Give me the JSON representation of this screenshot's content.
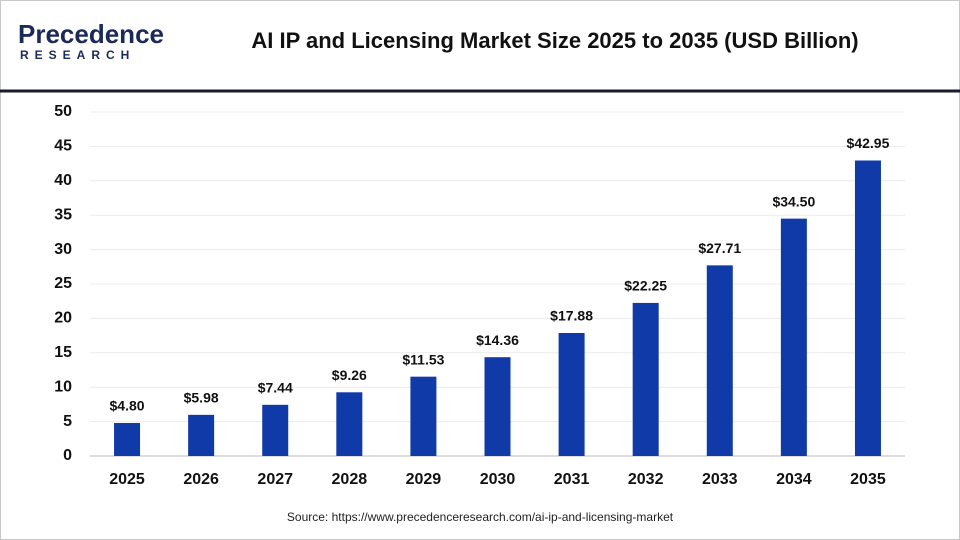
{
  "logo": {
    "name": "Precedence",
    "sub": "RESEARCH"
  },
  "chart_data": {
    "type": "bar",
    "title": "AI IP and Licensing Market Size 2025 to 2035 (USD Billion)",
    "categories": [
      "2025",
      "2026",
      "2027",
      "2028",
      "2029",
      "2030",
      "2031",
      "2032",
      "2033",
      "2034",
      "2035"
    ],
    "values": [
      4.8,
      5.98,
      7.44,
      9.26,
      11.53,
      14.36,
      17.88,
      22.25,
      27.71,
      34.5,
      42.95
    ],
    "value_labels": [
      "$4.80",
      "$5.98",
      "$7.44",
      "$9.26",
      "$11.53",
      "$14.36",
      "$17.88",
      "$22.25",
      "$27.71",
      "$34.50",
      "$42.95"
    ],
    "color": "#0f3aa8",
    "ylim": [
      0,
      50
    ],
    "yticks": [
      0,
      5,
      10,
      15,
      20,
      25,
      30,
      35,
      40,
      45,
      50
    ],
    "grid": true,
    "source": "Source: https://www.precedenceresearch.com/ai-ip-and-licensing-market"
  }
}
